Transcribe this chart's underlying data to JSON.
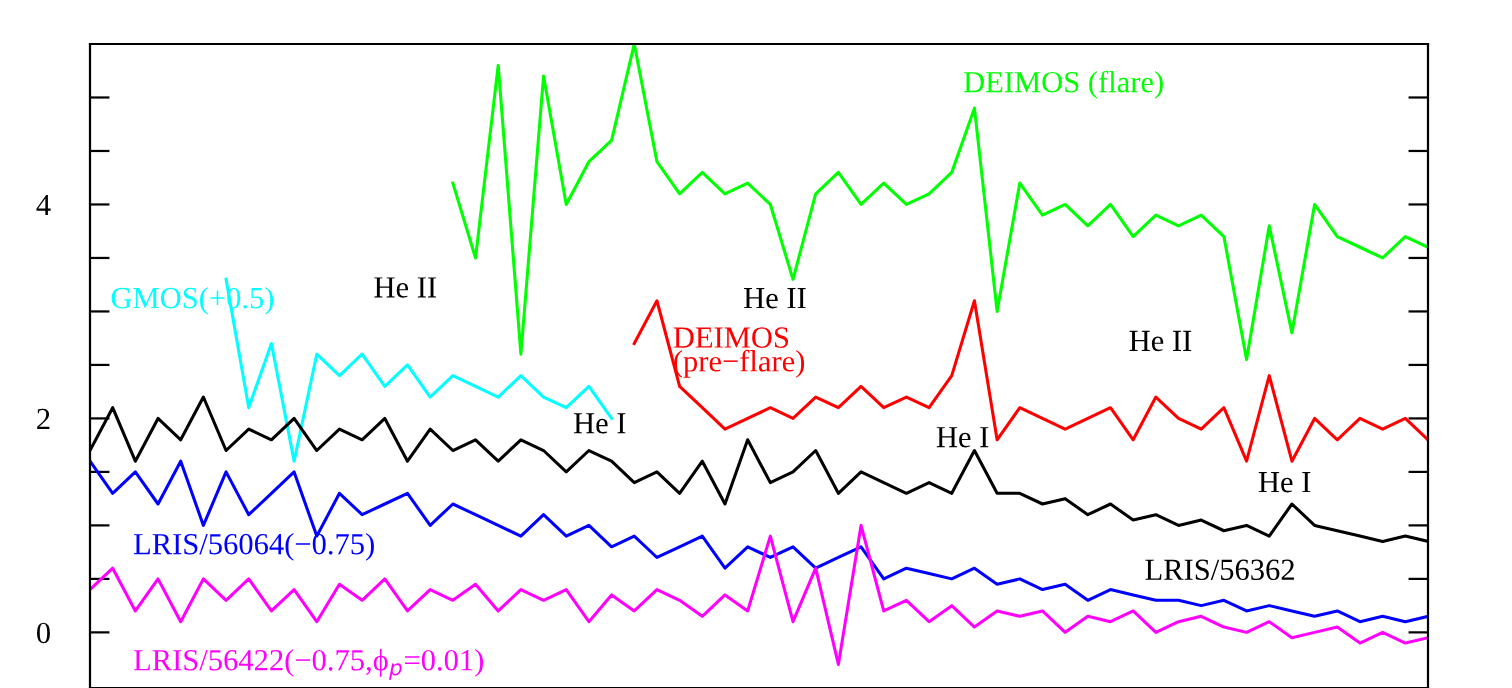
{
  "chart_data": {
    "type": "line",
    "categories": [
      null,
      null,
      null,
      null,
      null,
      null,
      null,
      null,
      null,
      null,
      null,
      null,
      null,
      null,
      null,
      null,
      null,
      null,
      null,
      null,
      null,
      null,
      null,
      null,
      null,
      null,
      null,
      null,
      null,
      null,
      null,
      null,
      null,
      null,
      null,
      null,
      null,
      null,
      null,
      null,
      null,
      null,
      null,
      null,
      null,
      null,
      null,
      null,
      null,
      null,
      null,
      null,
      null,
      null,
      null,
      null,
      null,
      null,
      null,
      null
    ],
    "series": [
      {
        "name": "DEIMOS (flare)",
        "color": "#00ff00",
        "values": [
          null,
          null,
          null,
          null,
          null,
          null,
          null,
          null,
          null,
          null,
          null,
          null,
          null,
          null,
          null,
          null,
          4.2,
          3.5,
          5.3,
          2.6,
          5.2,
          4.0,
          4.4,
          4.6,
          5.5,
          4.4,
          4.1,
          4.3,
          4.1,
          4.2,
          4.0,
          3.3,
          4.1,
          4.3,
          4.0,
          4.2,
          4.0,
          4.1,
          4.3,
          4.9,
          3.0,
          4.2,
          3.9,
          4.0,
          3.8,
          4.0,
          3.7,
          3.9,
          3.8,
          3.9,
          3.7,
          2.55,
          3.8,
          2.8,
          4.0,
          3.7,
          3.6,
          3.5,
          3.7,
          3.6
        ]
      },
      {
        "name": "GMOS(+0.5)",
        "color": "#00ffff",
        "values": [
          null,
          null,
          null,
          null,
          null,
          null,
          3.3,
          2.1,
          2.7,
          1.6,
          2.6,
          2.4,
          2.6,
          2.3,
          2.5,
          2.2,
          2.4,
          2.3,
          2.2,
          2.4,
          2.2,
          2.1,
          2.3,
          2.0,
          null,
          null,
          null,
          null,
          null,
          null,
          null,
          null,
          null,
          null,
          null,
          null,
          null,
          null,
          null,
          null,
          null,
          null,
          null,
          null,
          null,
          null,
          null,
          null,
          null,
          null,
          null,
          null,
          null,
          null,
          null,
          null,
          null,
          null,
          null,
          null
        ]
      },
      {
        "name": "DEIMOS\n(pre−flare)",
        "color": "#ff0000",
        "values": [
          null,
          null,
          null,
          null,
          null,
          null,
          null,
          null,
          null,
          null,
          null,
          null,
          null,
          null,
          null,
          null,
          null,
          null,
          null,
          null,
          null,
          null,
          null,
          null,
          2.7,
          3.1,
          2.3,
          2.1,
          1.9,
          2.0,
          2.1,
          2.0,
          2.2,
          2.1,
          2.3,
          2.1,
          2.2,
          2.1,
          2.4,
          3.1,
          1.8,
          2.1,
          2.0,
          1.9,
          2.0,
          2.1,
          1.8,
          2.2,
          2.0,
          1.9,
          2.1,
          1.6,
          2.4,
          1.6,
          2.0,
          1.8,
          2.0,
          1.9,
          2.0,
          1.8
        ]
      },
      {
        "name": "LRIS/56362",
        "color": "#000000",
        "values": [
          1.7,
          2.1,
          1.6,
          2.0,
          1.8,
          2.2,
          1.7,
          1.9,
          1.8,
          2.0,
          1.7,
          1.9,
          1.8,
          2.0,
          1.6,
          1.9,
          1.7,
          1.8,
          1.6,
          1.8,
          1.7,
          1.5,
          1.7,
          1.6,
          1.4,
          1.5,
          1.3,
          1.6,
          1.2,
          1.8,
          1.4,
          1.5,
          1.7,
          1.3,
          1.5,
          1.4,
          1.3,
          1.4,
          1.3,
          1.7,
          1.3,
          1.3,
          1.2,
          1.25,
          1.1,
          1.2,
          1.05,
          1.1,
          1.0,
          1.05,
          0.95,
          1.0,
          0.9,
          1.2,
          1.0,
          0.95,
          0.9,
          0.85,
          0.9,
          0.85
        ]
      },
      {
        "name": "LRIS/56064(−0.75)",
        "color": "#0000ff",
        "values": [
          1.6,
          1.3,
          1.5,
          1.2,
          1.6,
          1.0,
          1.5,
          1.1,
          1.3,
          1.5,
          0.9,
          1.3,
          1.1,
          1.2,
          1.3,
          1.0,
          1.2,
          1.1,
          1.0,
          0.9,
          1.1,
          0.9,
          1.0,
          0.8,
          0.9,
          0.7,
          0.8,
          0.9,
          0.6,
          0.8,
          0.7,
          0.8,
          0.6,
          0.7,
          0.8,
          0.5,
          0.6,
          0.55,
          0.5,
          0.6,
          0.45,
          0.5,
          0.4,
          0.45,
          0.3,
          0.4,
          0.35,
          0.3,
          0.3,
          0.25,
          0.3,
          0.2,
          0.25,
          0.2,
          0.15,
          0.2,
          0.1,
          0.15,
          0.1,
          0.15
        ]
      },
      {
        "name": "LRIS/56422(−0.75,ϕ$_{p}$=0.01)",
        "color": "#ff00ff",
        "values": [
          0.4,
          0.6,
          0.2,
          0.5,
          0.1,
          0.5,
          0.3,
          0.5,
          0.2,
          0.4,
          0.1,
          0.45,
          0.3,
          0.5,
          0.2,
          0.4,
          0.3,
          0.45,
          0.2,
          0.4,
          0.3,
          0.4,
          0.1,
          0.35,
          0.2,
          0.4,
          0.3,
          0.15,
          0.35,
          0.2,
          0.9,
          0.1,
          0.6,
          -0.3,
          1.0,
          0.2,
          0.3,
          0.1,
          0.25,
          0.05,
          0.2,
          0.15,
          0.2,
          0.0,
          0.15,
          0.1,
          0.2,
          0.0,
          0.1,
          0.15,
          0.05,
          0.0,
          0.1,
          -0.05,
          0.0,
          0.05,
          -0.1,
          0.0,
          -0.1,
          -0.05
        ]
      }
    ],
    "ylim": [
      -0.52,
      5.5
    ],
    "yticks": [
      0,
      {
        "value": 0.5,
        "label": null
      },
      {
        "value": 1,
        "label": null
      },
      {
        "value": 1.5,
        "label": null
      },
      2,
      {
        "value": 2.5,
        "label": null
      },
      {
        "value": 3,
        "label": null
      },
      {
        "value": 3.5,
        "label": null
      },
      4,
      {
        "value": 4.5,
        "label": null
      },
      {
        "value": 5,
        "label": null
      }
    ],
    "annotations": [
      "He II",
      "He II",
      "He II",
      "He I",
      "He I",
      "He I"
    ],
    "grid": false,
    "legend": false,
    "marker": "none",
    "line_style": "solid"
  }
}
